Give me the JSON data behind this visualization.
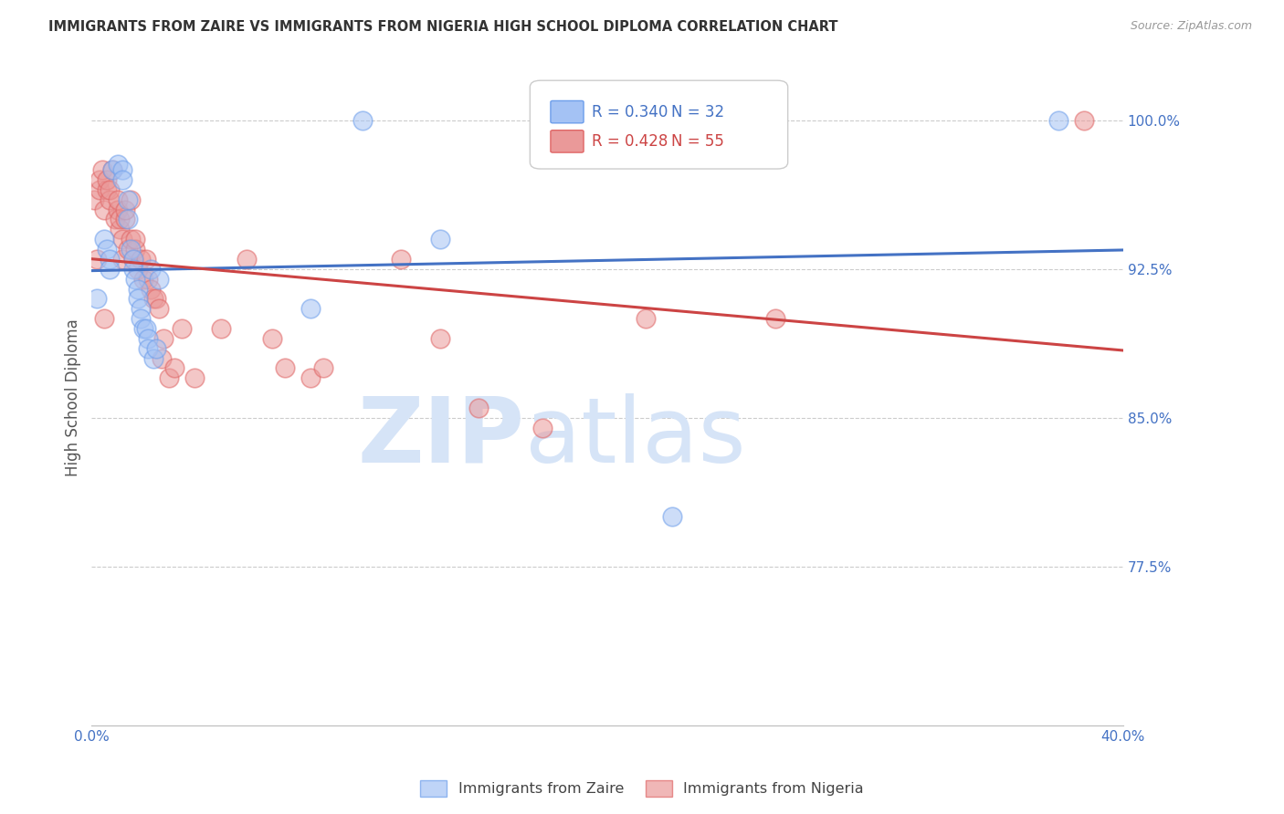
{
  "title": "IMMIGRANTS FROM ZAIRE VS IMMIGRANTS FROM NIGERIA HIGH SCHOOL DIPLOMA CORRELATION CHART",
  "source": "Source: ZipAtlas.com",
  "ylabel": "High School Diploma",
  "xlim": [
    0.0,
    0.4
  ],
  "ylim": [
    0.695,
    1.025
  ],
  "xticks": [
    0.0,
    0.05,
    0.1,
    0.15,
    0.2,
    0.25,
    0.3,
    0.35,
    0.4
  ],
  "xticklabels": [
    "0.0%",
    "",
    "",
    "",
    "",
    "",
    "",
    "",
    "40.0%"
  ],
  "yticks": [
    0.775,
    0.85,
    0.925,
    1.0
  ],
  "yticklabels": [
    "77.5%",
    "85.0%",
    "92.5%",
    "100.0%"
  ],
  "tick_color": "#4472c4",
  "legend_r_zaire": "R = 0.340",
  "legend_n_zaire": "N = 32",
  "legend_r_nigeria": "R = 0.428",
  "legend_n_nigeria": "N = 55",
  "zaire_color": "#a4c2f4",
  "nigeria_color": "#ea9999",
  "zaire_edge_color": "#6d9eeb",
  "nigeria_edge_color": "#e06666",
  "zaire_line_color": "#4472c4",
  "nigeria_line_color": "#cc4444",
  "watermark_zip": "ZIP",
  "watermark_atlas": "atlas",
  "watermark_color": "#d6e4f7",
  "zaire_scatter_x": [
    0.002,
    0.008,
    0.01,
    0.012,
    0.012,
    0.014,
    0.014,
    0.015,
    0.016,
    0.016,
    0.017,
    0.018,
    0.018,
    0.019,
    0.019,
    0.02,
    0.021,
    0.022,
    0.022,
    0.023,
    0.024,
    0.025,
    0.026,
    0.005,
    0.006,
    0.007,
    0.007,
    0.085,
    0.105,
    0.135,
    0.225,
    0.375
  ],
  "zaire_scatter_y": [
    0.91,
    0.975,
    0.978,
    0.975,
    0.97,
    0.96,
    0.95,
    0.935,
    0.93,
    0.925,
    0.92,
    0.915,
    0.91,
    0.905,
    0.9,
    0.895,
    0.895,
    0.89,
    0.885,
    0.925,
    0.88,
    0.885,
    0.92,
    0.94,
    0.935,
    0.93,
    0.925,
    0.905,
    1.0,
    0.94,
    0.8,
    1.0
  ],
  "nigeria_scatter_x": [
    0.001,
    0.002,
    0.003,
    0.003,
    0.004,
    0.005,
    0.005,
    0.006,
    0.006,
    0.007,
    0.007,
    0.008,
    0.009,
    0.01,
    0.01,
    0.011,
    0.011,
    0.012,
    0.012,
    0.013,
    0.013,
    0.014,
    0.015,
    0.015,
    0.016,
    0.017,
    0.017,
    0.018,
    0.019,
    0.02,
    0.021,
    0.022,
    0.023,
    0.024,
    0.025,
    0.026,
    0.027,
    0.028,
    0.03,
    0.032,
    0.035,
    0.04,
    0.05,
    0.06,
    0.07,
    0.075,
    0.085,
    0.09,
    0.12,
    0.135,
    0.15,
    0.175,
    0.215,
    0.265,
    0.385
  ],
  "nigeria_scatter_y": [
    0.96,
    0.93,
    0.965,
    0.97,
    0.975,
    0.9,
    0.955,
    0.965,
    0.97,
    0.96,
    0.965,
    0.975,
    0.95,
    0.955,
    0.96,
    0.945,
    0.95,
    0.93,
    0.94,
    0.95,
    0.955,
    0.935,
    0.94,
    0.96,
    0.93,
    0.935,
    0.94,
    0.925,
    0.93,
    0.92,
    0.93,
    0.92,
    0.915,
    0.91,
    0.91,
    0.905,
    0.88,
    0.89,
    0.87,
    0.875,
    0.895,
    0.87,
    0.895,
    0.93,
    0.89,
    0.875,
    0.87,
    0.875,
    0.93,
    0.89,
    0.855,
    0.845,
    0.9,
    0.9,
    1.0
  ],
  "background_color": "#ffffff",
  "grid_color": "#cccccc",
  "title_color": "#333333",
  "axis_label_color": "#555555"
}
